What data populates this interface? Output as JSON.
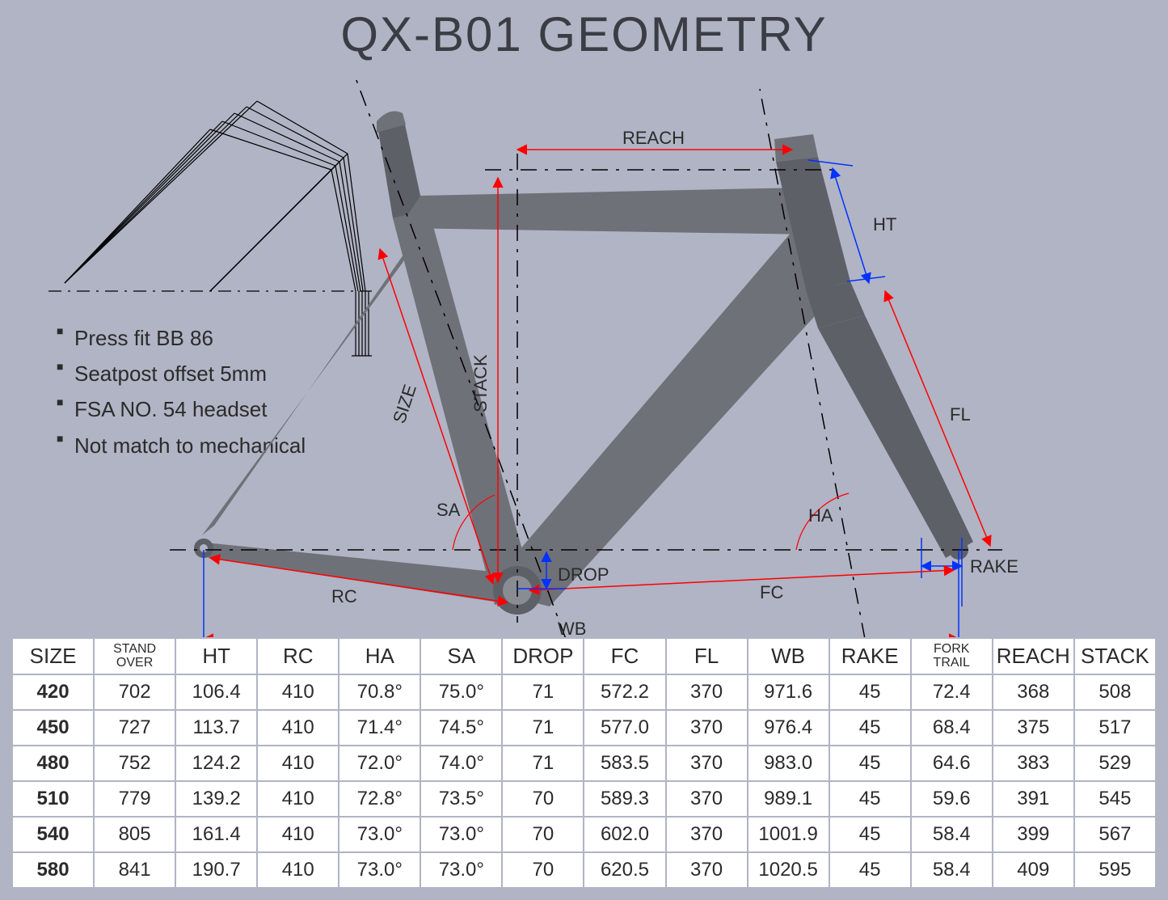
{
  "title": "QX-B01 GEOMETRY",
  "notes": [
    "Press fit BB 86",
    "Seatpost offset 5mm",
    "FSA NO. 54 headset",
    "Not match to mechanical"
  ],
  "diagram": {
    "colors": {
      "background": "#b0b4c4",
      "frame": "#6f7179",
      "frame_dark": "#5e6068",
      "dim_blue": "#0033ff",
      "dim_red": "#ff0000",
      "text": "#2b2b2b",
      "dash": "#000000"
    },
    "labels": {
      "reach": "REACH",
      "ht": "HT",
      "fl": "FL",
      "ha": "HA",
      "rake": "RAKE",
      "fc": "FC",
      "wb": "WB",
      "drop": "DROP",
      "rc": "RC",
      "sa": "SA",
      "size": "SIZE",
      "stack": "STACK"
    }
  },
  "table": {
    "columns": [
      {
        "key": "size",
        "label": "SIZE"
      },
      {
        "key": "standover",
        "label": "STAND OVER",
        "small": true
      },
      {
        "key": "ht",
        "label": "HT"
      },
      {
        "key": "rc",
        "label": "RC"
      },
      {
        "key": "ha",
        "label": "HA"
      },
      {
        "key": "sa",
        "label": "SA"
      },
      {
        "key": "drop",
        "label": "DROP"
      },
      {
        "key": "fc",
        "label": "FC"
      },
      {
        "key": "fl",
        "label": "FL"
      },
      {
        "key": "wb",
        "label": "WB"
      },
      {
        "key": "rake",
        "label": "RAKE"
      },
      {
        "key": "forktrail",
        "label": "FORK TRAIL",
        "small": true
      },
      {
        "key": "reach",
        "label": "REACH"
      },
      {
        "key": "stack",
        "label": "STACK"
      }
    ],
    "rows": [
      {
        "size": "420",
        "standover": "702",
        "ht": "106.4",
        "rc": "410",
        "ha": "70.8°",
        "sa": "75.0°",
        "drop": "71",
        "fc": "572.2",
        "fl": "370",
        "wb": "971.6",
        "rake": "45",
        "forktrail": "72.4",
        "reach": "368",
        "stack": "508"
      },
      {
        "size": "450",
        "standover": "727",
        "ht": "113.7",
        "rc": "410",
        "ha": "71.4°",
        "sa": "74.5°",
        "drop": "71",
        "fc": "577.0",
        "fl": "370",
        "wb": "976.4",
        "rake": "45",
        "forktrail": "68.4",
        "reach": "375",
        "stack": "517"
      },
      {
        "size": "480",
        "standover": "752",
        "ht": "124.2",
        "rc": "410",
        "ha": "72.0°",
        "sa": "74.0°",
        "drop": "71",
        "fc": "583.5",
        "fl": "370",
        "wb": "983.0",
        "rake": "45",
        "forktrail": "64.6",
        "reach": "383",
        "stack": "529"
      },
      {
        "size": "510",
        "standover": "779",
        "ht": "139.2",
        "rc": "410",
        "ha": "72.8°",
        "sa": "73.5°",
        "drop": "70",
        "fc": "589.3",
        "fl": "370",
        "wb": "989.1",
        "rake": "45",
        "forktrail": "59.6",
        "reach": "391",
        "stack": "545"
      },
      {
        "size": "540",
        "standover": "805",
        "ht": "161.4",
        "rc": "410",
        "ha": "73.0°",
        "sa": "73.0°",
        "drop": "70",
        "fc": "602.0",
        "fl": "370",
        "wb": "1001.9",
        "rake": "45",
        "forktrail": "58.4",
        "reach": "399",
        "stack": "567"
      },
      {
        "size": "580",
        "standover": "841",
        "ht": "190.7",
        "rc": "410",
        "ha": "73.0°",
        "sa": "73.0°",
        "drop": "70",
        "fc": "620.5",
        "fl": "370",
        "wb": "1020.5",
        "rake": "45",
        "forktrail": "58.4",
        "reach": "409",
        "stack": "595"
      }
    ]
  }
}
